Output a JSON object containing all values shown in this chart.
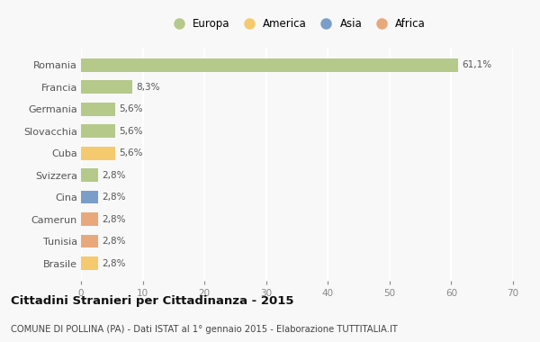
{
  "categories": [
    "Romania",
    "Francia",
    "Germania",
    "Slovacchia",
    "Cuba",
    "Svizzera",
    "Cina",
    "Camerun",
    "Tunisia",
    "Brasile"
  ],
  "values": [
    61.1,
    8.3,
    5.6,
    5.6,
    5.6,
    2.8,
    2.8,
    2.8,
    2.8,
    2.8
  ],
  "labels": [
    "61,1%",
    "8,3%",
    "5,6%",
    "5,6%",
    "5,6%",
    "2,8%",
    "2,8%",
    "2,8%",
    "2,8%",
    "2,8%"
  ],
  "colors": [
    "#b5c98a",
    "#b5c98a",
    "#b5c98a",
    "#b5c98a",
    "#f5ca6e",
    "#b5c98a",
    "#7b9ec9",
    "#e8a87c",
    "#e8a87c",
    "#f5ca6e"
  ],
  "legend_labels": [
    "Europa",
    "America",
    "Asia",
    "Africa"
  ],
  "legend_colors": [
    "#b5c98a",
    "#f5ca6e",
    "#7b9ec9",
    "#e8a87c"
  ],
  "title": "Cittadini Stranieri per Cittadinanza - 2015",
  "subtitle": "COMUNE DI POLLINA (PA) - Dati ISTAT al 1° gennaio 2015 - Elaborazione TUTTITALIA.IT",
  "xlim": [
    0,
    70
  ],
  "xticks": [
    0,
    10,
    20,
    30,
    40,
    50,
    60,
    70
  ],
  "background_color": "#f8f8f8",
  "grid_color": "#ffffff",
  "bar_height": 0.6
}
